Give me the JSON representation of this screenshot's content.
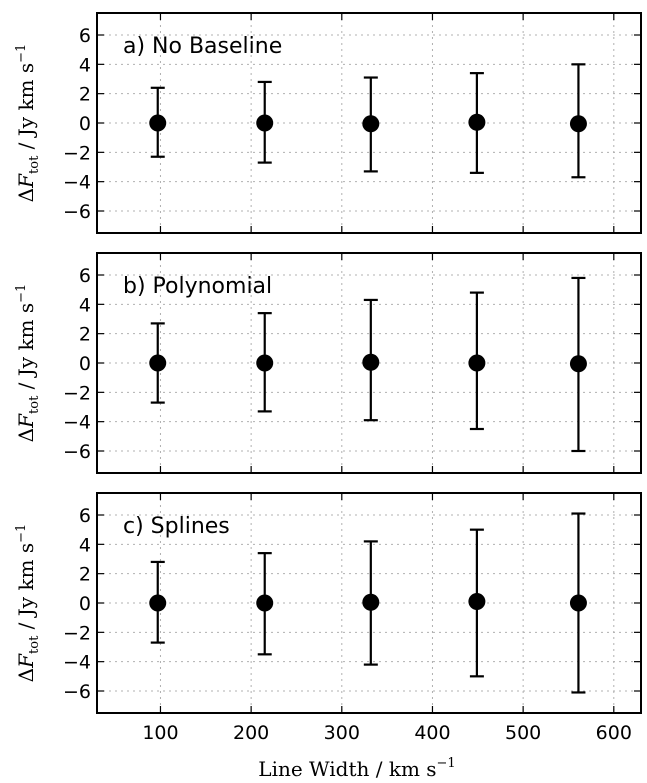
{
  "chart_data": {
    "type": "scatter",
    "error_bars": true,
    "grid": true,
    "x_label": "Line Width / km s",
    "x_label_sup": "−1",
    "y_label_delta": "Δ",
    "y_label_F": "F",
    "y_label_sub": "tot",
    "y_label_units": " / Jy km s",
    "y_label_sup": "−1",
    "xlim": [
      30,
      630
    ],
    "ylim": [
      -7.5,
      7.5
    ],
    "x_ticks": [
      100,
      200,
      300,
      400,
      500,
      600
    ],
    "x_tick_labels": [
      "100",
      "200",
      "300",
      "400",
      "500",
      "600"
    ],
    "y_ticks": [
      -6,
      -4,
      -2,
      0,
      2,
      4,
      6
    ],
    "y_tick_labels": [
      "−6",
      "−4",
      "−2",
      "0",
      "2",
      "4",
      "6"
    ],
    "marker_color": "#000000",
    "panels": [
      {
        "title": "a) No Baseline",
        "x": [
          97,
          215,
          332,
          449,
          561
        ],
        "y": [
          0.0,
          0.0,
          -0.05,
          0.05,
          -0.05
        ],
        "y_lower": [
          -2.3,
          -2.7,
          -3.3,
          -3.4,
          -3.7
        ],
        "y_upper": [
          2.4,
          2.8,
          3.1,
          3.4,
          4.0
        ]
      },
      {
        "title": "b) Polynomial",
        "x": [
          97,
          215,
          332,
          449,
          561
        ],
        "y": [
          0.0,
          0.0,
          0.05,
          0.0,
          -0.05
        ],
        "y_lower": [
          -2.7,
          -3.3,
          -3.9,
          -4.5,
          -6.0
        ],
        "y_upper": [
          2.7,
          3.4,
          4.3,
          4.8,
          5.8
        ]
      },
      {
        "title": "c) Splines",
        "x": [
          97,
          215,
          332,
          449,
          561
        ],
        "y": [
          0.0,
          0.0,
          0.05,
          0.1,
          0.0
        ],
        "y_lower": [
          -2.7,
          -3.5,
          -4.2,
          -5.0,
          -6.1
        ],
        "y_upper": [
          2.8,
          3.4,
          4.2,
          5.0,
          6.1
        ]
      }
    ]
  }
}
